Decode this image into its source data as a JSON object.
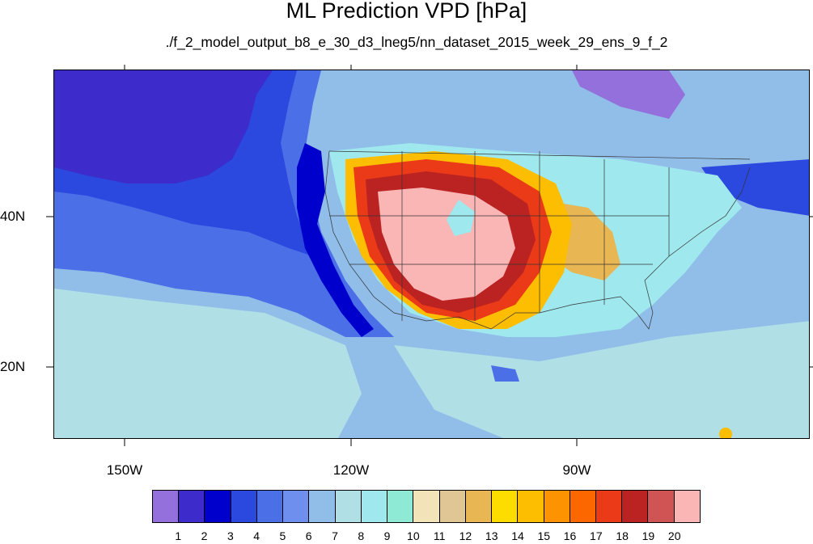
{
  "title": "ML Prediction VPD [hPa]",
  "subtitle": "./f_2_model_output_b8_e_30_d3_lneg5/nn_dataset_2015_week_29_ens_9_f_2",
  "axes": {
    "lat_labels": [
      "40N",
      "20N"
    ],
    "lon_labels": [
      "150W",
      "120W",
      "90W"
    ]
  },
  "colorbar": {
    "colors": [
      "#9370db",
      "#3d2bcb",
      "#0000cd",
      "#2b48df",
      "#4b6fe7",
      "#6f8fee",
      "#91bde9",
      "#b0dfe6",
      "#9ee8ee",
      "#8eead5",
      "#f2e3b8",
      "#e0c694",
      "#e8b652",
      "#fddc00",
      "#fdbd00",
      "#fd9300",
      "#fd6700",
      "#eb3a17",
      "#bb2222",
      "#d05454",
      "#fab5b5"
    ],
    "labels": [
      "1",
      "2",
      "3",
      "4",
      "5",
      "6",
      "7",
      "8",
      "9",
      "10",
      "11",
      "12",
      "13",
      "14",
      "15",
      "16",
      "17",
      "18",
      "19",
      "20"
    ]
  }
}
